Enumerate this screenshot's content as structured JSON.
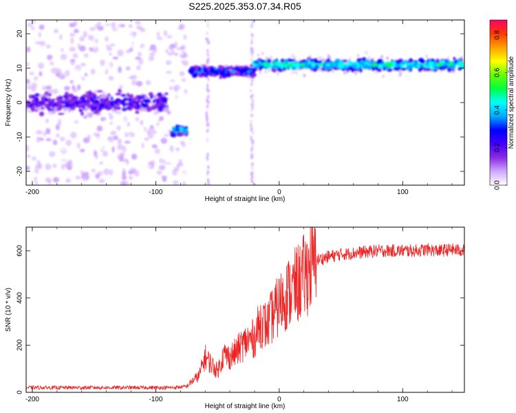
{
  "figure": {
    "title": "S225.2025.353.07.34.R05"
  },
  "chart_data": [
    {
      "type": "heatmap",
      "xlabel": "Height of straight line (km)",
      "ylabel": "Frequency (Hz)",
      "xlim": [
        -205,
        150
      ],
      "ylim": [
        -24,
        24
      ],
      "x_ticks": [
        -200,
        -100,
        0,
        100
      ],
      "y_ticks": [
        -20,
        -10,
        0,
        10,
        20
      ],
      "colorbar": {
        "label": "Normalized spectral amplitude",
        "range": [
          0,
          0.88
        ],
        "ticks": [
          "0.0",
          "0.2",
          "0.4",
          "0.6",
          "0.8"
        ],
        "tick_values": [
          0.0,
          0.2,
          0.4,
          0.6,
          0.8
        ],
        "colors": [
          "#ffffff",
          "#cfa8ff",
          "#8a2be2",
          "#4400ff",
          "#0000ff",
          "#00aaff",
          "#00ffff",
          "#00ff44",
          "#66ff00",
          "#ffff00",
          "#ffa000",
          "#ff3c00",
          "#ff0066"
        ]
      },
      "ridges": [
        {
          "x": [
            -205,
            -90
          ],
          "freq": 0,
          "amplitude": 0.25
        },
        {
          "x": [
            -87,
            -75
          ],
          "freq": -8,
          "amplitude": 0.4
        },
        {
          "x": [
            -72,
            -20
          ],
          "freq": 9,
          "amplitude": 0.35
        },
        {
          "x": [
            -20,
            150
          ],
          "freq": 11,
          "amplitude": 0.5
        }
      ]
    },
    {
      "type": "line",
      "xlabel": "Height of straight line (km)",
      "ylabel": "SNR (10 * v/v)",
      "xlim": [
        -205,
        150
      ],
      "ylim": [
        0,
        700
      ],
      "x_ticks": [
        -200,
        -100,
        0,
        100
      ],
      "y_ticks": [
        0,
        200,
        400,
        600
      ],
      "series_color": "#ee2222",
      "x": [
        -205,
        -180,
        -150,
        -120,
        -100,
        -85,
        -75,
        -70,
        -65,
        -60,
        -55,
        -50,
        -45,
        -40,
        -35,
        -30,
        -25,
        -20,
        -15,
        -10,
        -5,
        0,
        5,
        10,
        15,
        20,
        25,
        30,
        40,
        50,
        60,
        70,
        80,
        90,
        100,
        110,
        120,
        130,
        140,
        150
      ],
      "y": [
        20,
        20,
        20,
        20,
        20,
        20,
        25,
        50,
        70,
        150,
        120,
        90,
        160,
        150,
        170,
        200,
        220,
        230,
        300,
        280,
        330,
        370,
        410,
        430,
        460,
        490,
        530,
        560,
        575,
        585,
        590,
        595,
        600,
        600,
        600,
        600,
        605,
        600,
        605,
        600
      ]
    }
  ]
}
